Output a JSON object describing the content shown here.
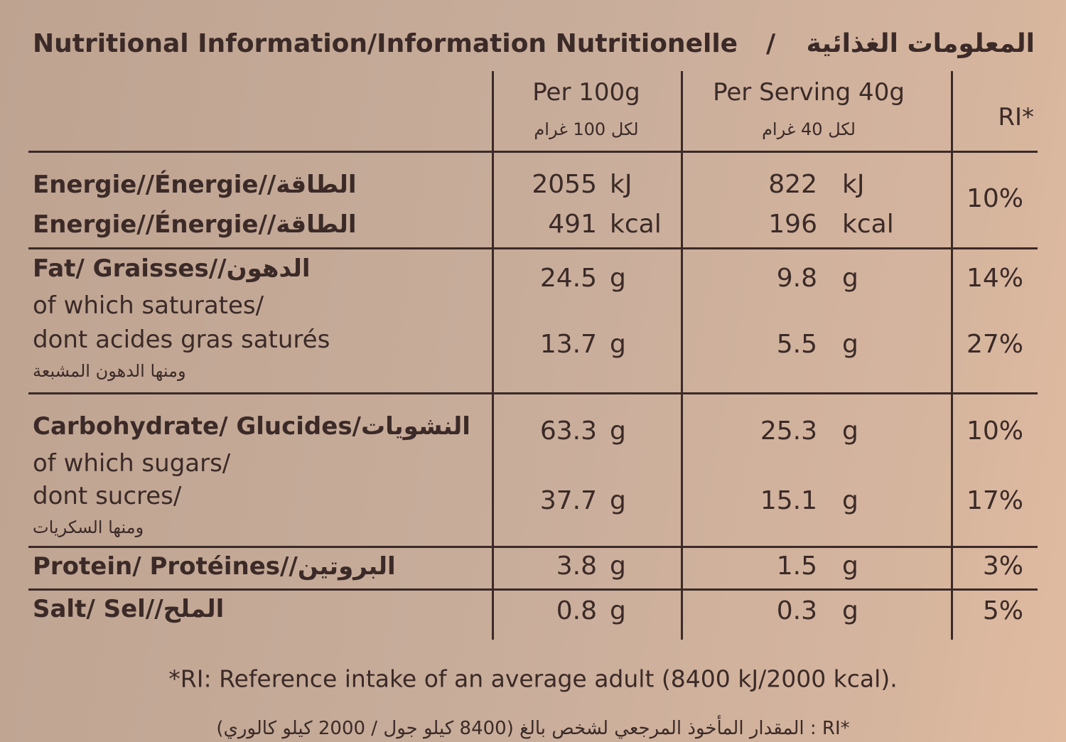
{
  "title": {
    "english": "Nutritional Information/Information Nutritionelle",
    "separator": "/",
    "arabic": "المعلومات الغذائية"
  },
  "table": {
    "headers": [
      {
        "english": "Per 100g",
        "arabic": "لكل 100 غرام"
      },
      {
        "english": "Per Serving 40g",
        "arabic": "لكل 40 غرام"
      },
      {
        "english": "RI*"
      }
    ],
    "rows": [
      {
        "label": [
          "Energie//Énergie//الطاقة",
          "Energie//Énergie//الطاقة"
        ],
        "per_100g": [
          {
            "amount": "2055",
            "unit": "kJ"
          },
          {
            "amount": "491",
            "unit": "kcal"
          }
        ],
        "per_serving": [
          {
            "amount": "822",
            "unit": "kJ"
          },
          {
            "amount": "196",
            "unit": "kcal"
          }
        ],
        "ri": "10%"
      },
      {
        "label": [
          "Fat/ Graisses//الدهون"
        ],
        "per_100g": [
          {
            "amount": "24.5",
            "unit": "g"
          }
        ],
        "per_serving": [
          {
            "amount": "9.8",
            "unit": "g"
          }
        ],
        "ri": "14%"
      },
      {
        "label": [
          "of which saturates/",
          "dont acides gras saturés",
          "ومنها الدهون المشبعة"
        ],
        "per_100g": [
          {
            "amount": "13.7",
            "unit": "g"
          }
        ],
        "per_serving": [
          {
            "amount": "5.5",
            "unit": "g"
          }
        ],
        "ri": "27%"
      },
      {
        "label": [
          "Carbohydrate/ Glucides/النشويات"
        ],
        "per_100g": [
          {
            "amount": "63.3",
            "unit": "g"
          }
        ],
        "per_serving": [
          {
            "amount": "25.3",
            "unit": "g"
          }
        ],
        "ri": "10%"
      },
      {
        "label": [
          "of which sugars/",
          "dont sucres/",
          "ومنها السكريات"
        ],
        "per_100g": [
          {
            "amount": "37.7",
            "unit": "g"
          }
        ],
        "per_serving": [
          {
            "amount": "15.1",
            "unit": "g"
          }
        ],
        "ri": "17%"
      },
      {
        "label": [
          "Protein/ Protéines//البروتين"
        ],
        "per_100g": [
          {
            "amount": "3.8",
            "unit": "g"
          }
        ],
        "per_serving": [
          {
            "amount": "1.5",
            "unit": "g"
          }
        ],
        "ri": "3%"
      },
      {
        "label": [
          "Salt/ Sel//الملح"
        ],
        "per_100g": [
          {
            "amount": "0.8",
            "unit": "g"
          }
        ],
        "per_serving": [
          {
            "amount": "0.3",
            "unit": "g"
          }
        ],
        "ri": "5%"
      }
    ]
  },
  "footnote": {
    "english": "*RI: Reference intake of an average adult (8400 kJ/2000 kcal).",
    "arabic": "*RI : المقدار المأخوذ المرجعي لشخص بالغ (8400 كيلو جول / 2000 كيلو كالوري)"
  }
}
